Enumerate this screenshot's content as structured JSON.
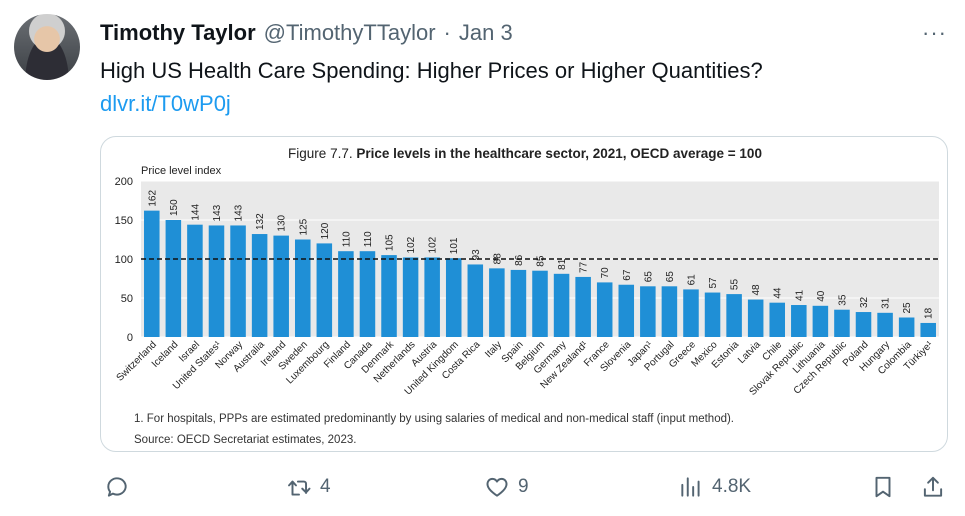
{
  "author": {
    "name": "Timothy Taylor",
    "handle": "@TimothyTTaylor",
    "separator": "·",
    "date": "Jan 3"
  },
  "more_label": "···",
  "tweet": {
    "text": "High US Health Care Spending: Higher Prices or Higher Quantities?",
    "link": "dlvr.it/T0wP0j"
  },
  "chart_data": {
    "type": "bar",
    "title_prefix": "Figure 7.7. ",
    "title": "Price levels in the healthcare sector, 2021, OECD average = 100",
    "ylabel": "Price level index",
    "ylim": [
      0,
      200
    ],
    "yticks": [
      0,
      50,
      100,
      150,
      200
    ],
    "reference_line": 100,
    "bar_color": "#1f8fd6",
    "categories": [
      "Switzerland",
      "Iceland",
      "Israel",
      "United States¹",
      "Norway",
      "Australia",
      "Ireland",
      "Sweden",
      "Luxembourg",
      "Finland",
      "Canada",
      "Denmark",
      "Netherlands",
      "Austria",
      "United Kingdom",
      "Costa Rica",
      "Italy",
      "Spain",
      "Belgium",
      "Germany",
      "New Zealand¹",
      "France",
      "Slovenia",
      "Japan¹",
      "Portugal",
      "Greece",
      "Mexico",
      "Estonia",
      "Latvia",
      "Chile",
      "Slovak Republic",
      "Lithuania",
      "Czech Republic",
      "Poland",
      "Hungary",
      "Colombia",
      "Türkiye¹"
    ],
    "values": [
      162,
      150,
      144,
      143,
      143,
      132,
      130,
      125,
      120,
      110,
      110,
      105,
      102,
      102,
      101,
      93,
      88,
      86,
      85,
      81,
      77,
      70,
      67,
      65,
      65,
      61,
      57,
      55,
      48,
      44,
      41,
      40,
      35,
      32,
      31,
      25,
      18
    ],
    "footnote": "1. For hospitals, PPPs are estimated predominantly by using salaries of medical and non-medical staff (input method).",
    "source": "Source: OECD Secretariat estimates, 2023."
  },
  "actions": {
    "replies": "",
    "reposts": "4",
    "likes": "9",
    "views": "4.8K"
  }
}
